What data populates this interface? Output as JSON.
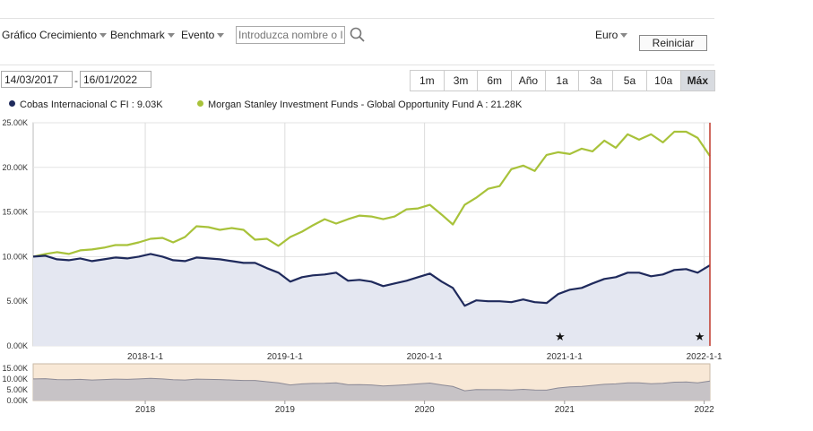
{
  "toolbar": {
    "growth_chart_label": "Gráfico Crecimiento",
    "benchmark_label": "Benchmark",
    "event_label": "Evento",
    "search_placeholder": "Introduzca nombre o ISIN",
    "currency_label": "Euro",
    "reset_label": "Reiniciar"
  },
  "date_range": {
    "start": "14/03/2017",
    "end": "16/01/2022",
    "buttons": [
      "1m",
      "3m",
      "6m",
      "Año",
      "1a",
      "3a",
      "5a",
      "10a",
      "Máx"
    ],
    "selected": "Máx"
  },
  "legend": [
    {
      "label": "Cobas Internacional C FI : 9.03K",
      "color": "#1f2a5c"
    },
    {
      "label": "Morgan Stanley Investment Funds - Global Opportunity Fund A : 21.28K",
      "color": "#a8c23a"
    }
  ],
  "chart_data": {
    "type": "line",
    "ylim": [
      0,
      25000
    ],
    "y_ticks": [
      "0.00K",
      "5.00K",
      "10.00K",
      "15.00K",
      "20.00K",
      "25.00K"
    ],
    "x_ticks": [
      "2018-1-1",
      "2019-1-1",
      "2020-1-1",
      "2021-1-1",
      "2022-1-1"
    ],
    "x": [
      "2017-03-14",
      "2017-04-15",
      "2017-05-15",
      "2017-06-15",
      "2017-07-15",
      "2017-08-15",
      "2017-09-15",
      "2017-10-15",
      "2017-11-15",
      "2017-12-15",
      "2018-01-15",
      "2018-02-15",
      "2018-03-15",
      "2018-04-15",
      "2018-05-15",
      "2018-06-15",
      "2018-07-15",
      "2018-08-15",
      "2018-09-15",
      "2018-10-15",
      "2018-11-15",
      "2018-12-15",
      "2019-01-15",
      "2019-02-15",
      "2019-03-15",
      "2019-04-15",
      "2019-05-15",
      "2019-06-15",
      "2019-07-15",
      "2019-08-15",
      "2019-09-15",
      "2019-10-15",
      "2019-11-15",
      "2019-12-15",
      "2020-01-15",
      "2020-02-15",
      "2020-03-15",
      "2020-04-15",
      "2020-05-15",
      "2020-06-15",
      "2020-07-15",
      "2020-08-15",
      "2020-09-15",
      "2020-10-15",
      "2020-11-15",
      "2020-12-15",
      "2021-01-15",
      "2021-02-15",
      "2021-03-15",
      "2021-04-15",
      "2021-05-15",
      "2021-06-15",
      "2021-07-15",
      "2021-08-15",
      "2021-09-15",
      "2021-10-15",
      "2021-11-15",
      "2021-12-15",
      "2022-01-16"
    ],
    "series": [
      {
        "name": "Cobas Internacional C FI",
        "color": "#1f2a5c",
        "values": [
          10000,
          10100,
          9700,
          9600,
          9800,
          9500,
          9700,
          9900,
          9800,
          10000,
          10300,
          10000,
          9600,
          9500,
          9900,
          9800,
          9700,
          9500,
          9300,
          9300,
          8700,
          8200,
          7200,
          7700,
          7900,
          8000,
          8200,
          7300,
          7400,
          7200,
          6700,
          7000,
          7300,
          7700,
          8100,
          7200,
          6500,
          4500,
          5100,
          5000,
          5000,
          4900,
          5200,
          4900,
          4800,
          5800,
          6300,
          6500,
          7000,
          7500,
          7700,
          8200,
          8200,
          7800,
          8000,
          8500,
          8600,
          8200,
          9030
        ]
      },
      {
        "name": "Morgan Stanley Investment Funds - Global Opportunity Fund A",
        "color": "#a8c23a",
        "values": [
          10000,
          10300,
          10500,
          10300,
          10700,
          10800,
          11000,
          11300,
          11300,
          11600,
          12000,
          12100,
          11600,
          12200,
          13400,
          13300,
          13000,
          13200,
          13000,
          11900,
          12000,
          11200,
          12200,
          12800,
          13500,
          14200,
          13700,
          14200,
          14600,
          14500,
          14200,
          14500,
          15300,
          15400,
          15800,
          14700,
          13600,
          15800,
          16600,
          17600,
          17900,
          19800,
          20200,
          19600,
          21400,
          21700,
          21500,
          22100,
          21800,
          23000,
          22200,
          23700,
          23100,
          23700,
          22800,
          24000,
          24000,
          23300,
          21280
        ]
      }
    ],
    "nav_x_ticks": [
      "2018",
      "2019",
      "2020",
      "2021",
      "2022"
    ],
    "nav_y_ticks": [
      "15.00K",
      "10.00K",
      "5.00K",
      "0.00K"
    ],
    "event_markers": [
      "2021-01-01",
      "2022-01-01"
    ]
  }
}
